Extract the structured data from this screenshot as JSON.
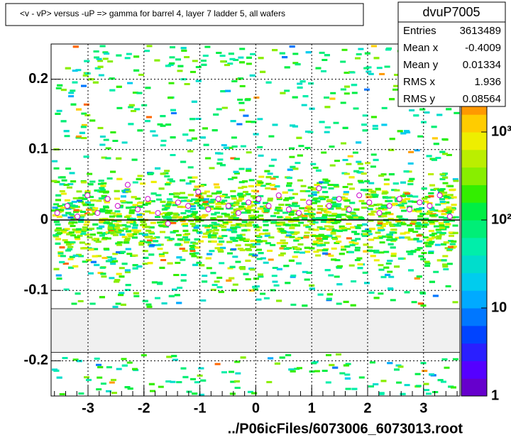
{
  "chart_data": {
    "type": "heatmap-profile",
    "title": "<v - vP>      versus  -uP =>  gamma for barrel 4, layer 7 ladder 5, all wafers",
    "x_label": "../P06icFiles/6073006_6073013.root",
    "xlim": [
      -3.66,
      3.65
    ],
    "ylim": [
      -0.25,
      0.25
    ],
    "xticks": [
      -3,
      -2,
      -1,
      0,
      1,
      2,
      3
    ],
    "yticks": [
      {
        "value": 0.2,
        "label": "0.2"
      },
      {
        "value": 0.1,
        "label": "0.1"
      },
      0,
      {
        "value": -0.1,
        "label": "-0.1"
      },
      {
        "value": -0.2,
        "label": "-0.2"
      }
    ],
    "zlim": [
      1,
      10000
    ],
    "zlog": true,
    "zticks": [
      1,
      10,
      {
        "value": 100,
        "label": "10²"
      },
      {
        "value": 1000,
        "label": "10³"
      }
    ],
    "grid": true,
    "palette": [
      "#6600cc",
      "#5500ff",
      "#2a1fff",
      "#0044ff",
      "#0077ff",
      "#00aaff",
      "#00ccee",
      "#00ddcc",
      "#00eeaa",
      "#00ee77",
      "#00ee44",
      "#33ee00",
      "#88ee00",
      "#bbee00",
      "#eeee00",
      "#ffcc00",
      "#ff9900",
      "#ff6600",
      "#ff3300",
      "#dd0000"
    ],
    "profile": {
      "color": "#cc00cc",
      "x": [
        -3.55,
        -3.37,
        -3.19,
        -3.01,
        -2.83,
        -2.65,
        -2.47,
        -2.29,
        -2.11,
        -1.93,
        -1.75,
        -1.57,
        -1.39,
        -1.21,
        -1.03,
        -0.85,
        -0.67,
        -0.49,
        -0.31,
        -0.13,
        0.05,
        0.23,
        0.41,
        0.59,
        0.77,
        0.95,
        1.13,
        1.31,
        1.49,
        1.67,
        1.85,
        2.03,
        2.21,
        2.39,
        2.57,
        2.75,
        2.93,
        3.11,
        3.29,
        3.47
      ],
      "y": [
        0.01,
        0.02,
        0.005,
        0.035,
        0.01,
        0.03,
        0.02,
        0.05,
        0.015,
        0.03,
        0.01,
        -0.005,
        0.025,
        0.02,
        0.04,
        0.015,
        0.03,
        0.02,
        0.01,
        0.025,
        0.03,
        0.02,
        0.035,
        0.015,
        0.01,
        0.025,
        0.045,
        0.02,
        0.03,
        0.015,
        0.035,
        0.025,
        0.01,
        0.02,
        0.03,
        0.015,
        0.025,
        0.02,
        0.035,
        0.005
      ]
    },
    "stats": {
      "name": "dvuP7005",
      "rows": [
        {
          "label": "Entries",
          "value": "3613489"
        },
        {
          "label": "Mean x",
          "value": "-0.4009"
        },
        {
          "label": "Mean y",
          "value": "0.01334"
        },
        {
          "label": "RMS x",
          "value": "1.936"
        },
        {
          "label": "RMS y",
          "value": "0.08564"
        }
      ]
    }
  }
}
